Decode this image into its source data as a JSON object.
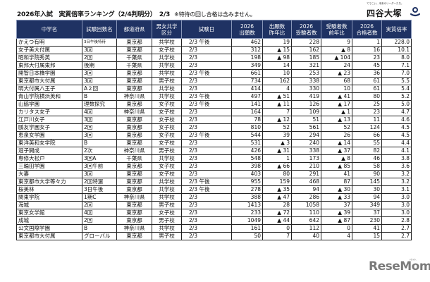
{
  "header": {
    "title": "2026年入試　実質倍率ランキング（2/4判明分）　2/3",
    "note": "※特待の回し合格は含みません。"
  },
  "logo": {
    "tagline": "てでこい、未来のリーダーたち。",
    "name": "四谷大塚",
    "icon": "yotsuya-otsuka-logo-icon",
    "color": "#1f3263"
  },
  "table": {
    "header_color": "#1f3263",
    "columns": [
      "中学名",
      "試験回数名",
      "都道府県",
      "男女共学\n区分",
      "試験日",
      "2026\n出願数",
      "出願数\n昨年比",
      "2026\n受験者数",
      "受験者数\n前年比",
      "2026\n合格者数",
      "実質倍率"
    ],
    "rows": [
      [
        "かえつ有明",
        "3日午後特待",
        "東京都",
        "共学校",
        "2/3 午後",
        "462",
        "19",
        "228",
        "9",
        "1",
        "228.0"
      ],
      [
        "女子美大付属",
        "3回",
        "東京都",
        "女子校",
        "2/3",
        "312",
        "▲ 15",
        "162",
        "▲ 8",
        "16",
        "10.1"
      ],
      [
        "昭和学院秀英",
        "2回",
        "千葉県",
        "共学校",
        "2/3",
        "198",
        "▲ 98",
        "185",
        "▲ 104",
        "23",
        "8.0"
      ],
      [
        "東邦大付属東邦",
        "後期",
        "千葉県",
        "共学校",
        "2/3",
        "349",
        "14",
        "321",
        "24",
        "45",
        "7.1"
      ],
      [
        "開智日本橋学園",
        "3回",
        "東京都",
        "共学校",
        "2/3 午後",
        "661",
        "10",
        "253",
        "▲ 23",
        "36",
        "7.0"
      ],
      [
        "東京都市大付属",
        "3回",
        "東京都",
        "男子校",
        "2/3",
        "734",
        "162",
        "338",
        "68",
        "61",
        "5.5"
      ],
      [
        "明大付属八王子",
        "A２回",
        "東京都",
        "共学校",
        "2/3",
        "414",
        "4",
        "330",
        "10",
        "61",
        "5.4"
      ],
      [
        "青山学院横浜英和",
        "B",
        "神奈川県",
        "共学校",
        "2/3 午後",
        "497",
        "▲ 51",
        "419",
        "▲ 41",
        "80",
        "5.2"
      ],
      [
        "山脇学園",
        "理数探究",
        "東京都",
        "女子校",
        "2/3 午後",
        "141",
        "▲ 11",
        "126",
        "▲ 17",
        "25",
        "5.0"
      ],
      [
        "カリタス女子",
        "4回",
        "神奈川県",
        "女子校",
        "2/3",
        "164",
        "7",
        "109",
        "▲ 1",
        "23",
        "4.7"
      ],
      [
        "江戸川女子",
        "3回",
        "東京都",
        "女子校",
        "2/3",
        "78",
        "▲ 12",
        "51",
        "▲ 13",
        "11",
        "4.6"
      ],
      [
        "鷗友学園女子",
        "2回",
        "東京都",
        "女子校",
        "2/3",
        "810",
        "52",
        "561",
        "52",
        "124",
        "4.5"
      ],
      [
        "恵泉女学園",
        "3回",
        "東京都",
        "女子校",
        "2/3 午後",
        "544",
        "39",
        "294",
        "26",
        "66",
        "4.5"
      ],
      [
        "東洋英和女学院",
        "B",
        "東京都",
        "女子校",
        "2/3",
        "531",
        "▲ 3",
        "240",
        "▲ 14",
        "55",
        "4.4"
      ],
      [
        "逗子開成",
        "2次",
        "神奈川県",
        "男子校",
        "2/3",
        "426",
        "▲ 31",
        "338",
        "▲ 37",
        "82",
        "4.1"
      ],
      [
        "専修大松戸",
        "3回A",
        "千葉県",
        "共学校",
        "2/3",
        "548",
        "1",
        "173",
        "▲ 8",
        "46",
        "3.8"
      ],
      [
        "三輪田学園",
        "3回午前",
        "東京都",
        "女子校",
        "2/3",
        "398",
        "▲ 66",
        "210",
        "▲ 85",
        "58",
        "3.6"
      ],
      [
        "大妻",
        "3回",
        "東京都",
        "女子校",
        "2/3",
        "403",
        "80",
        "291",
        "41",
        "90",
        "3.2"
      ],
      [
        "東京都市大学等々力",
        "2回特選",
        "東京都",
        "共学校",
        "2/3 午後",
        "955",
        "159",
        "468",
        "87",
        "145",
        "3.2"
      ],
      [
        "桜美林",
        "3日午後",
        "東京都",
        "共学校",
        "2/3 午後",
        "278",
        "▲ 35",
        "94",
        "▲ 30",
        "30",
        "3.1"
      ],
      [
        "関東学院",
        "1期C",
        "神奈川県",
        "共学校",
        "2/3",
        "388",
        "▲ 47",
        "286",
        "▲ 33",
        "94",
        "3.0"
      ],
      [
        "海城",
        "2回",
        "東京都",
        "男子校",
        "2/3",
        "1413",
        "28",
        "1058",
        "37",
        "349",
        "3.0"
      ],
      [
        "東京女学館",
        "4回",
        "東京都",
        "女子校",
        "2/3",
        "233",
        "▲ 72",
        "110",
        "▲ 39",
        "37",
        "3.0"
      ],
      [
        "成城",
        "2回",
        "東京都",
        "男子校",
        "2/3",
        "1049",
        "▲ 44",
        "642",
        "▲ 87",
        "230",
        "2.8"
      ],
      [
        "公文国際学園",
        "B",
        "神奈川県",
        "共学校",
        "2/3",
        "161",
        "0",
        "112",
        "0",
        "41",
        "2.7"
      ],
      [
        "東京都市大付属",
        "グローバル",
        "東京都",
        "男子校",
        "2/3",
        "50",
        "7",
        "40",
        "4",
        "15",
        "2.7"
      ]
    ]
  },
  "footer": {
    "watermark": "ReseMom",
    "watermark_sup": "リセマム"
  }
}
